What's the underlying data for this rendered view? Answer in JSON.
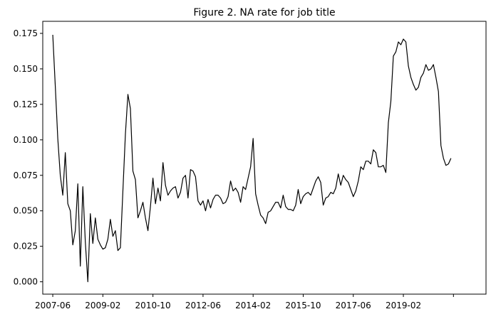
{
  "chart_data": {
    "type": "line",
    "title": "Figure 2. NA rate for job title",
    "xlabel": "",
    "ylabel": "",
    "x_start": "2007-06",
    "x_step_months": 1,
    "x_ticks": [
      "2007-06",
      "2009-02",
      "2010-10",
      "2012-06",
      "2014-02",
      "2015-10",
      "2017-06",
      "2019-02",
      ""
    ],
    "y_ticks": [
      "0.000",
      "0.025",
      "0.050",
      "0.075",
      "0.100",
      "0.125",
      "0.150",
      "0.175"
    ],
    "ylim": [
      -0.0087,
      0.1835
    ],
    "xlim": [
      "2007-02",
      "2021-11"
    ],
    "grid": false,
    "legend": "none",
    "colors": {
      "line": "#000000",
      "axes": "#000000",
      "background": "#ffffff"
    },
    "series": [
      {
        "values": [
          0.174,
          0.138,
          0.101,
          0.075,
          0.061,
          0.091,
          0.055,
          0.05,
          0.026,
          0.036,
          0.069,
          0.011,
          0.067,
          0.028,
          0.0,
          0.048,
          0.027,
          0.045,
          0.03,
          0.026,
          0.023,
          0.024,
          0.03,
          0.044,
          0.032,
          0.036,
          0.022,
          0.024,
          0.064,
          0.104,
          0.132,
          0.122,
          0.078,
          0.072,
          0.045,
          0.05,
          0.056,
          0.045,
          0.036,
          0.053,
          0.073,
          0.055,
          0.066,
          0.057,
          0.084,
          0.068,
          0.061,
          0.064,
          0.066,
          0.067,
          0.059,
          0.063,
          0.073,
          0.075,
          0.059,
          0.079,
          0.078,
          0.074,
          0.057,
          0.054,
          0.057,
          0.05,
          0.058,
          0.052,
          0.058,
          0.061,
          0.061,
          0.059,
          0.055,
          0.056,
          0.06,
          0.071,
          0.064,
          0.066,
          0.063,
          0.056,
          0.067,
          0.065,
          0.073,
          0.081,
          0.101,
          0.062,
          0.054,
          0.047,
          0.045,
          0.041,
          0.049,
          0.05,
          0.053,
          0.056,
          0.056,
          0.052,
          0.061,
          0.053,
          0.051,
          0.051,
          0.05,
          0.054,
          0.065,
          0.055,
          0.06,
          0.062,
          0.063,
          0.061,
          0.066,
          0.071,
          0.074,
          0.07,
          0.054,
          0.059,
          0.06,
          0.063,
          0.062,
          0.066,
          0.076,
          0.068,
          0.075,
          0.072,
          0.07,
          0.065,
          0.06,
          0.064,
          0.071,
          0.081,
          0.079,
          0.085,
          0.085,
          0.083,
          0.093,
          0.091,
          0.081,
          0.081,
          0.082,
          0.077,
          0.112,
          0.127,
          0.159,
          0.162,
          0.169,
          0.167,
          0.171,
          0.169,
          0.152,
          0.144,
          0.139,
          0.135,
          0.137,
          0.144,
          0.147,
          0.153,
          0.149,
          0.15,
          0.153,
          0.144,
          0.134,
          0.096,
          0.087,
          0.082,
          0.083,
          0.087
        ]
      }
    ]
  }
}
